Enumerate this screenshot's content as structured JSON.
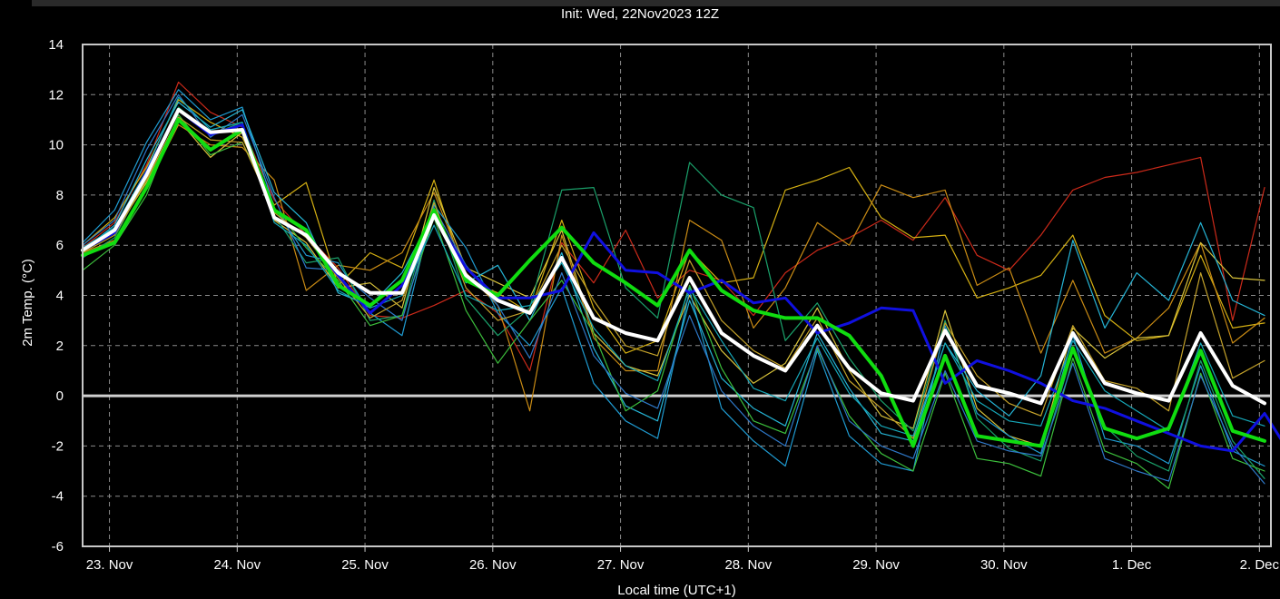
{
  "init_label": "Init: Wed, 22Nov2023 12Z",
  "chart_data": {
    "type": "line",
    "title": "Init: Wed, 22Nov2023 12Z",
    "xlabel": "Local time (UTC+1)",
    "ylabel": "2m Temp. (°C)",
    "ylim": [
      -6,
      14
    ],
    "xlim": [
      -0.21,
      9.09
    ],
    "yticks": [
      -6,
      -4,
      -2,
      0,
      2,
      4,
      6,
      8,
      10,
      12,
      14
    ],
    "xticks": [
      {
        "pos": 0,
        "label": "23. Nov"
      },
      {
        "pos": 1,
        "label": "24. Nov"
      },
      {
        "pos": 2,
        "label": "25. Nov"
      },
      {
        "pos": 3,
        "label": "26. Nov"
      },
      {
        "pos": 4,
        "label": "27. Nov"
      },
      {
        "pos": 5,
        "label": "28. Nov"
      },
      {
        "pos": 6,
        "label": "29. Nov"
      },
      {
        "pos": 7,
        "label": "30. Nov"
      },
      {
        "pos": 8,
        "label": "1. Dec"
      },
      {
        "pos": 9,
        "label": "2. Dec"
      }
    ],
    "grid": true,
    "x_step_days": 0.25,
    "x_start": -0.21,
    "series": [
      {
        "name": "",
        "role": "control",
        "color": "#1010e0",
        "width": 3,
        "values": [
          5.8,
          6.5,
          8.9,
          11.4,
          10.4,
          10.8,
          7.1,
          6.4,
          4.8,
          3.3,
          4.4,
          7.2,
          5.1,
          3.9,
          3.9,
          4.2,
          6.5,
          5.0,
          4.9,
          4.1,
          4.6,
          3.7,
          3.9,
          2.5,
          2.9,
          3.5,
          3.4,
          0.5,
          1.4,
          1.0,
          0.5,
          -0.2,
          -0.5,
          -1.0,
          -1.5,
          -2.0,
          -2.2,
          -0.7,
          -2.7,
          -3.8
        ]
      },
      {
        "name": "",
        "role": "ens-mean",
        "color": "#10dd10",
        "width": 4,
        "values": [
          5.6,
          6.1,
          8.3,
          11.0,
          9.8,
          10.6,
          7.4,
          6.6,
          4.4,
          3.6,
          4.6,
          7.4,
          4.6,
          4.0,
          5.4,
          6.7,
          5.3,
          4.5,
          3.6,
          5.8,
          4.2,
          3.4,
          3.1,
          3.1,
          2.4,
          0.8,
          -2.0,
          1.6,
          -1.6,
          -1.8,
          -2.0,
          1.9,
          -1.3,
          -1.7,
          -1.3,
          1.8,
          -1.4,
          -1.8
        ]
      },
      {
        "name": "",
        "role": "mean",
        "color": "#ffffff",
        "width": 4,
        "values": [
          5.8,
          6.6,
          8.8,
          11.4,
          10.5,
          10.6,
          7.1,
          6.4,
          4.9,
          4.1,
          4.1,
          7.2,
          4.8,
          3.8,
          3.3,
          5.5,
          3.1,
          2.5,
          2.2,
          4.7,
          2.5,
          1.6,
          1.0,
          2.8,
          1.1,
          0.1,
          -0.2,
          2.6,
          0.4,
          0.1,
          -0.3,
          2.5,
          0.5,
          0.1,
          -0.2,
          2.5,
          0.4,
          -0.3
        ]
      },
      {
        "name": "",
        "role": "member",
        "color": "#cc2a1a",
        "width": 1.2,
        "values": [
          5.9,
          6.9,
          9.2,
          12.5,
          11.3,
          10.7,
          7.8,
          6.4,
          5.1,
          3.2,
          3.1,
          3.6,
          4.2,
          3.3,
          1.0,
          6.1,
          4.5,
          6.6,
          3.9,
          5.0,
          4.6,
          3.2,
          4.9,
          5.8,
          6.3,
          7.0,
          6.2,
          7.9,
          5.6,
          5.0,
          6.4,
          8.2,
          8.7,
          8.9,
          9.2,
          9.5,
          3.0,
          8.3
        ]
      },
      {
        "name": "",
        "role": "member",
        "color": "#d5b012",
        "width": 1.2,
        "values": [
          6.0,
          7.1,
          9.1,
          11.8,
          10.9,
          10.3,
          7.6,
          8.5,
          4.4,
          5.7,
          5.1,
          8.6,
          4.6,
          4.1,
          3.3,
          7.0,
          3.5,
          1.7,
          2.2,
          5.8,
          4.5,
          4.7,
          8.2,
          8.6,
          9.1,
          7.1,
          6.3,
          6.4,
          3.9,
          4.3,
          4.8,
          6.4,
          3.2,
          2.2,
          2.4,
          5.6,
          2.7,
          2.9
        ]
      },
      {
        "name": "",
        "role": "member",
        "color": "#c98b14",
        "width": 1.2,
        "values": [
          5.7,
          6.2,
          8.3,
          10.8,
          10.0,
          9.9,
          8.6,
          4.2,
          5.2,
          5.0,
          5.7,
          8.1,
          4.9,
          3.6,
          -0.6,
          6.4,
          2.3,
          1.0,
          1.0,
          7.0,
          6.2,
          2.7,
          4.3,
          6.9,
          6.0,
          8.4,
          7.9,
          8.2,
          4.4,
          5.1,
          1.7,
          4.6,
          1.7,
          2.3,
          3.5,
          6.1,
          2.1,
          3.1
        ]
      },
      {
        "name": "",
        "role": "member",
        "color": "#d8c23a",
        "width": 1.2,
        "values": [
          5.9,
          6.5,
          8.5,
          11.0,
          9.5,
          10.5,
          7.0,
          6.1,
          4.3,
          4.5,
          3.5,
          8.3,
          5.1,
          4.5,
          3.9,
          6.6,
          2.5,
          1.2,
          0.8,
          4.0,
          1.8,
          0.5,
          1.3,
          3.5,
          1.0,
          -0.8,
          -1.3,
          3.4,
          -0.5,
          -1.6,
          -2.0,
          2.7,
          1.5,
          2.3,
          2.4,
          6.1,
          4.7,
          4.6
        ]
      },
      {
        "name": "",
        "role": "member",
        "color": "#1f9ad0",
        "width": 1.2,
        "values": [
          6.1,
          7.4,
          10.1,
          12.2,
          11.0,
          11.5,
          7.5,
          5.6,
          5.3,
          3.3,
          2.4,
          7.6,
          5.9,
          3.3,
          2.0,
          4.3,
          0.5,
          -1.0,
          -1.7,
          4.2,
          -0.5,
          -1.8,
          -2.8,
          1.8,
          -1.6,
          -2.7,
          -3.0,
          2.8,
          -0.7,
          -1.6,
          -2.3,
          2.4,
          -1.7,
          -2.0,
          -2.7,
          1.2,
          -2.2,
          -2.8
        ]
      },
      {
        "name": "",
        "role": "member",
        "color": "#25b4d5",
        "width": 1.2,
        "values": [
          5.8,
          6.8,
          9.4,
          11.7,
          10.7,
          11.4,
          8.1,
          6.9,
          4.1,
          3.6,
          4.9,
          7.3,
          4.5,
          5.2,
          3.0,
          5.7,
          1.9,
          -0.4,
          -1.0,
          3.8,
          0.7,
          -0.5,
          -1.2,
          2.5,
          0.3,
          -1.5,
          -1.8,
          2.1,
          0.2,
          -0.8,
          0.8,
          6.2,
          2.7,
          4.9,
          3.8,
          6.9,
          3.8,
          3.2
        ]
      },
      {
        "name": "",
        "role": "member",
        "color": "#1aa06a",
        "width": 1.2,
        "values": [
          5.5,
          6.3,
          8.7,
          11.5,
          10.4,
          10.9,
          7.2,
          5.3,
          5.5,
          3.0,
          3.2,
          7.8,
          3.9,
          2.4,
          3.5,
          8.2,
          8.3,
          4.3,
          3.1,
          9.3,
          8.0,
          7.5,
          2.2,
          3.7,
          1.5,
          -0.2,
          -1.4,
          3.0,
          -0.9,
          -2.1,
          -2.6,
          1.8,
          -1.2,
          -2.4,
          -3.0,
          1.4,
          -1.8,
          -3.3
        ]
      },
      {
        "name": "",
        "role": "member",
        "color": "#3cbf3c",
        "width": 1.2,
        "values": [
          5.0,
          6.0,
          8.0,
          11.2,
          9.6,
          10.1,
          7.5,
          5.9,
          4.6,
          2.8,
          3.2,
          7.1,
          3.4,
          1.3,
          3.0,
          4.6,
          2.5,
          -0.6,
          0.2,
          4.4,
          1.1,
          -1.0,
          -1.5,
          1.9,
          -0.8,
          -2.3,
          -3.0,
          0.9,
          -2.5,
          -2.7,
          -3.2,
          1.5,
          -2.2,
          -2.7,
          -3.7,
          0.9,
          -2.5,
          -3.0
        ]
      },
      {
        "name": "",
        "role": "member",
        "color": "#2e78c8",
        "width": 1.2,
        "values": [
          6.0,
          7.0,
          9.8,
          12.0,
          10.3,
          11.2,
          7.9,
          5.1,
          5.0,
          3.9,
          3.0,
          7.5,
          5.2,
          3.6,
          1.5,
          4.9,
          1.6,
          0.1,
          -0.5,
          3.2,
          0.2,
          -1.2,
          -2.0,
          2.0,
          -1.0,
          -2.0,
          -2.5,
          1.0,
          -1.8,
          -2.2,
          -2.4,
          1.3,
          -2.5,
          -3.0,
          -3.4,
          0.8,
          -2.0,
          -3.5
        ]
      },
      {
        "name": "",
        "role": "member",
        "color": "#c4a22a",
        "width": 1.2,
        "values": [
          5.7,
          6.4,
          8.6,
          11.1,
          10.2,
          10.1,
          7.3,
          6.3,
          4.7,
          3.1,
          3.8,
          7.7,
          4.3,
          3.0,
          3.4,
          6.0,
          3.8,
          2.0,
          1.6,
          5.4,
          3.0,
          1.8,
          1.1,
          3.1,
          0.6,
          -0.5,
          -1.7,
          2.9,
          0.8,
          -0.3,
          -0.8,
          2.8,
          0.6,
          0.3,
          -0.6,
          4.9,
          0.7,
          1.4
        ]
      },
      {
        "name": "",
        "role": "member",
        "color": "#16a7b8",
        "width": 1.2,
        "values": [
          5.9,
          6.7,
          9.0,
          11.9,
          10.6,
          10.9,
          6.9,
          6.0,
          4.2,
          3.5,
          4.0,
          6.8,
          4.0,
          3.4,
          3.6,
          5.3,
          2.7,
          1.2,
          0.6,
          4.3,
          2.2,
          0.3,
          -0.2,
          2.3,
          0.1,
          -1.2,
          -1.6,
          2.1,
          -0.2,
          -1.0,
          -1.2,
          2.2,
          0.2,
          -0.6,
          -1.4,
          2.1,
          -0.8,
          -1.2
        ]
      }
    ]
  }
}
